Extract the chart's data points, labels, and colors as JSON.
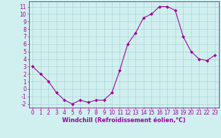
{
  "x": [
    0,
    1,
    2,
    3,
    4,
    5,
    6,
    7,
    8,
    9,
    10,
    11,
    12,
    13,
    14,
    15,
    16,
    17,
    18,
    19,
    20,
    21,
    22,
    23
  ],
  "y": [
    3.0,
    2.0,
    1.0,
    -0.5,
    -1.5,
    -2.0,
    -1.5,
    -1.8,
    -1.5,
    -1.5,
    -0.5,
    2.5,
    6.0,
    7.5,
    9.5,
    10.0,
    11.0,
    11.0,
    10.5,
    7.0,
    5.0,
    4.0,
    3.8,
    4.5
  ],
  "line_color": "#990099",
  "marker": "D",
  "marker_size": 2.0,
  "bg_color": "#d0f0f0",
  "grid_color": "#aacccc",
  "xlabel": "Windchill (Refroidissement éolien,°C)",
  "xlabel_color": "#990099",
  "ylabel_ticks": [
    -2,
    -1,
    0,
    1,
    2,
    3,
    4,
    5,
    6,
    7,
    8,
    9,
    10,
    11
  ],
  "xticks": [
    0,
    1,
    2,
    3,
    4,
    5,
    6,
    7,
    8,
    9,
    10,
    11,
    12,
    13,
    14,
    15,
    16,
    17,
    18,
    19,
    20,
    21,
    22,
    23
  ],
  "ylim": [
    -2.5,
    11.7
  ],
  "xlim": [
    -0.5,
    23.5
  ],
  "tick_color": "#990099",
  "spine_color": "#990099",
  "tick_fontsize": 5.5,
  "xlabel_fontsize": 6.0
}
